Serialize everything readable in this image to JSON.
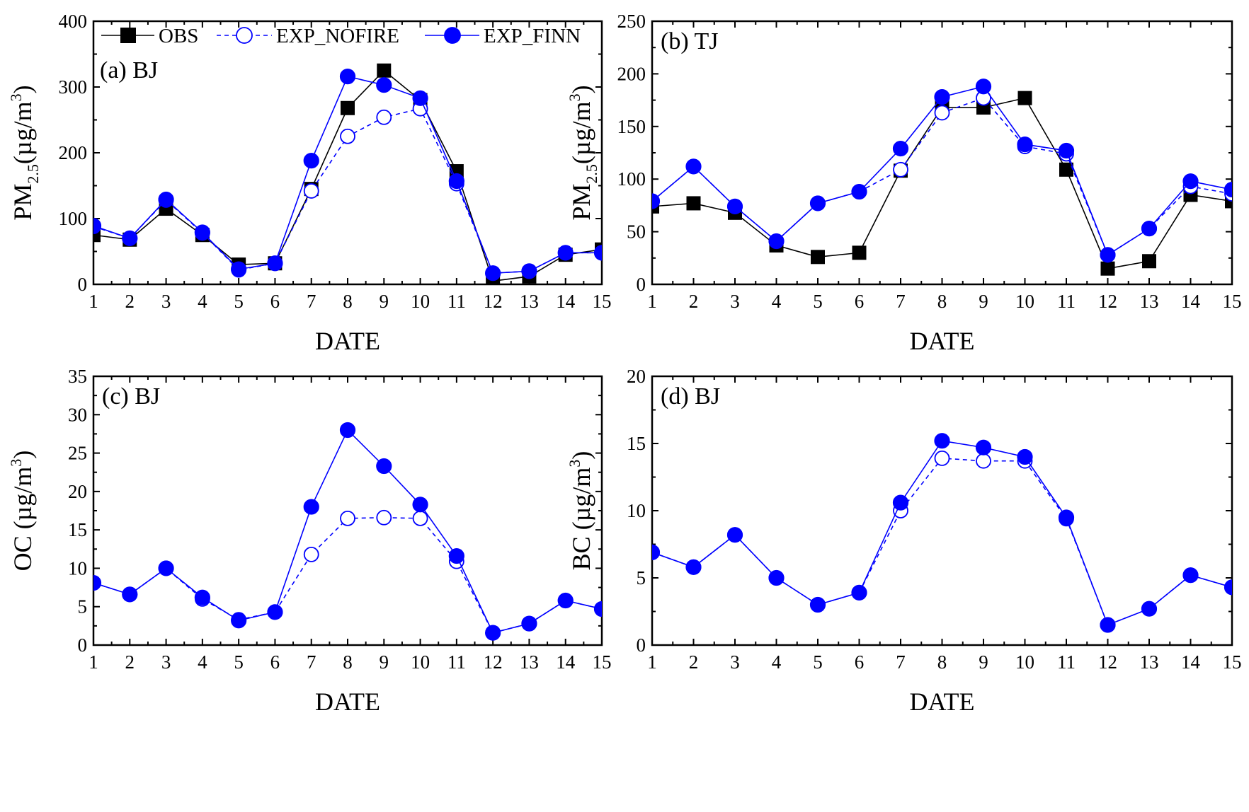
{
  "legend": {
    "obs": "OBS",
    "nofire": "EXP_NOFIRE",
    "finn": "EXP_FINN"
  },
  "colors": {
    "obs": "#000000",
    "model": "#0000ff"
  },
  "chart_data": [
    {
      "id": "a",
      "type": "line",
      "panel_label": "(a) BJ",
      "xlabel": "DATE",
      "ylabel_main": "PM",
      "ylabel_sub": "2.5",
      "ylabel_unit": "(µg/m",
      "ylabel_sup": "3",
      "ylabel_close": ")",
      "xlim": [
        1,
        15
      ],
      "ylim": [
        0,
        400
      ],
      "xticks": [
        1,
        2,
        3,
        4,
        5,
        6,
        7,
        8,
        9,
        10,
        11,
        12,
        13,
        14,
        15
      ],
      "yticks": [
        0,
        100,
        200,
        300,
        400
      ],
      "legend_position": "top",
      "series": [
        {
          "name": "OBS",
          "key": "obs",
          "marker": "square",
          "dashed": false,
          "x": [
            1,
            2,
            3,
            4,
            5,
            6,
            7,
            8,
            9,
            10,
            11,
            12,
            13,
            14,
            15
          ],
          "values": [
            75,
            68,
            115,
            75,
            30,
            32,
            145,
            268,
            325,
            280,
            172,
            5,
            12,
            45,
            53
          ]
        },
        {
          "name": "EXP_NOFIRE",
          "key": "nofire",
          "marker": "open-circle",
          "dashed": true,
          "x": [
            1,
            2,
            3,
            4,
            5,
            6,
            7,
            8,
            9,
            10,
            11,
            12,
            13,
            14,
            15
          ],
          "values": [
            88,
            70,
            128,
            78,
            22,
            32,
            142,
            225,
            254,
            267,
            153,
            17,
            20,
            48,
            48
          ]
        },
        {
          "name": "EXP_FINN",
          "key": "finn",
          "marker": "filled-circle",
          "dashed": false,
          "x": [
            1,
            2,
            3,
            4,
            5,
            6,
            7,
            8,
            9,
            10,
            11,
            12,
            13,
            14,
            15
          ],
          "values": [
            89,
            70,
            129,
            79,
            23,
            32,
            188,
            316,
            303,
            283,
            157,
            17,
            20,
            48,
            48
          ]
        }
      ]
    },
    {
      "id": "b",
      "type": "line",
      "panel_label": "(b) TJ",
      "xlabel": "DATE",
      "ylabel_main": "PM",
      "ylabel_sub": "2.5",
      "ylabel_unit": "(µg/m",
      "ylabel_sup": "3",
      "ylabel_close": ")",
      "xlim": [
        1,
        15
      ],
      "ylim": [
        0,
        250
      ],
      "xticks": [
        1,
        2,
        3,
        4,
        5,
        6,
        7,
        8,
        9,
        10,
        11,
        12,
        13,
        14,
        15
      ],
      "yticks": [
        0,
        50,
        100,
        150,
        200,
        250
      ],
      "series": [
        {
          "name": "OBS",
          "key": "obs",
          "marker": "square",
          "dashed": false,
          "x": [
            1,
            2,
            3,
            4,
            5,
            6,
            7,
            8,
            9,
            10,
            11,
            12,
            13,
            14,
            15
          ],
          "values": [
            74,
            77,
            68,
            37,
            26,
            30,
            108,
            168,
            168,
            177,
            109,
            15,
            22,
            85,
            79
          ]
        },
        {
          "name": "EXP_NOFIRE",
          "key": "nofire",
          "marker": "open-circle",
          "dashed": true,
          "x": [
            1,
            2,
            3,
            4,
            5,
            6,
            7,
            8,
            9,
            10,
            11,
            12,
            13,
            14,
            15
          ],
          "values": [
            79,
            112,
            74,
            41,
            77,
            88,
            109,
            163,
            177,
            131,
            124,
            28,
            53,
            93,
            86
          ]
        },
        {
          "name": "EXP_FINN",
          "key": "finn",
          "marker": "filled-circle",
          "dashed": false,
          "x": [
            1,
            2,
            3,
            4,
            5,
            6,
            7,
            8,
            9,
            10,
            11,
            12,
            13,
            14,
            15
          ],
          "values": [
            79,
            112,
            74,
            41,
            77,
            88,
            129,
            178,
            188,
            133,
            127,
            28,
            53,
            98,
            90
          ]
        }
      ]
    },
    {
      "id": "c",
      "type": "line",
      "panel_label": "(c) BJ",
      "xlabel": "DATE",
      "ylabel_main": "OC",
      "ylabel_sub": "",
      "ylabel_unit": " (µg/m",
      "ylabel_sup": "3",
      "ylabel_close": ")",
      "xlim": [
        1,
        15
      ],
      "ylim": [
        0,
        35
      ],
      "xticks": [
        1,
        2,
        3,
        4,
        5,
        6,
        7,
        8,
        9,
        10,
        11,
        12,
        13,
        14,
        15
      ],
      "yticks": [
        0,
        5,
        10,
        15,
        20,
        25,
        30,
        35
      ],
      "series": [
        {
          "name": "EXP_NOFIRE",
          "key": "nofire",
          "marker": "open-circle",
          "dashed": true,
          "x": [
            1,
            2,
            3,
            4,
            5,
            6,
            7,
            8,
            9,
            10,
            11,
            12,
            13,
            14,
            15
          ],
          "values": [
            8.1,
            6.6,
            10.0,
            6.0,
            3.3,
            4.3,
            11.8,
            16.5,
            16.6,
            16.5,
            10.9,
            1.6,
            2.8,
            5.8,
            4.7
          ]
        },
        {
          "name": "EXP_FINN",
          "key": "finn",
          "marker": "filled-circle",
          "dashed": false,
          "x": [
            1,
            2,
            3,
            4,
            5,
            6,
            7,
            8,
            9,
            10,
            11,
            12,
            13,
            14,
            15
          ],
          "values": [
            8.1,
            6.6,
            10.0,
            6.2,
            3.2,
            4.3,
            18.0,
            28.0,
            23.3,
            18.3,
            11.6,
            1.6,
            2.8,
            5.8,
            4.7
          ]
        }
      ]
    },
    {
      "id": "d",
      "type": "line",
      "panel_label": "(d) BJ",
      "xlabel": "DATE",
      "ylabel_main": "BC",
      "ylabel_sub": "",
      "ylabel_unit": " (µg/m",
      "ylabel_sup": "3",
      "ylabel_close": ")",
      "xlim": [
        1,
        15
      ],
      "ylim": [
        0,
        20
      ],
      "xticks": [
        1,
        2,
        3,
        4,
        5,
        6,
        7,
        8,
        9,
        10,
        11,
        12,
        13,
        14,
        15
      ],
      "yticks": [
        0,
        5,
        10,
        15,
        20
      ],
      "series": [
        {
          "name": "EXP_NOFIRE",
          "key": "nofire",
          "marker": "open-circle",
          "dashed": true,
          "x": [
            1,
            2,
            3,
            4,
            5,
            6,
            7,
            8,
            9,
            10,
            11,
            12,
            13,
            14,
            15
          ],
          "values": [
            6.9,
            5.8,
            8.2,
            5.0,
            3.0,
            3.9,
            10.0,
            13.9,
            13.7,
            13.7,
            9.4,
            1.5,
            2.7,
            5.2,
            4.3
          ]
        },
        {
          "name": "EXP_FINN",
          "key": "finn",
          "marker": "filled-circle",
          "dashed": false,
          "x": [
            1,
            2,
            3,
            4,
            5,
            6,
            7,
            8,
            9,
            10,
            11,
            12,
            13,
            14,
            15
          ],
          "values": [
            6.9,
            5.8,
            8.2,
            5.0,
            3.0,
            3.9,
            10.6,
            15.2,
            14.7,
            14.0,
            9.5,
            1.5,
            2.7,
            5.2,
            4.3
          ]
        }
      ]
    }
  ]
}
